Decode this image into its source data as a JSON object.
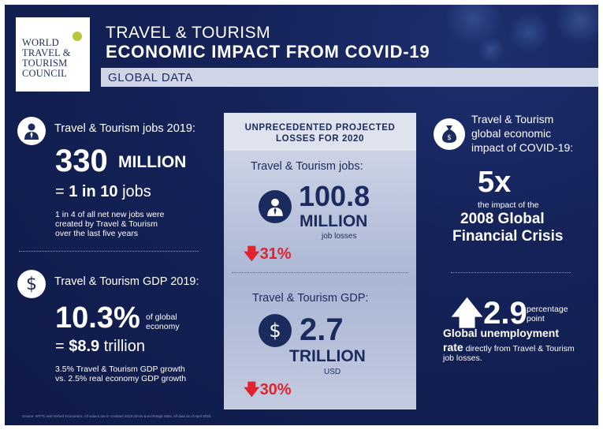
{
  "logo": {
    "lines": [
      "WORLD",
      "TRAVEL &",
      "TOURISM",
      "COUNCIL"
    ]
  },
  "header": {
    "title_line1": "TRAVEL & TOURISM",
    "title_line2": "ECONOMIC IMPACT FROM COVID-19",
    "global_label": "GLOBAL DATA"
  },
  "left": {
    "jobs_label": "Travel & Tourism jobs 2019:",
    "jobs_number": "330",
    "jobs_unit": "MILLION",
    "jobs_ratio_prefix": "= ",
    "jobs_ratio_bold": "1 in 10",
    "jobs_ratio_suffix": " jobs",
    "jobs_note_line1": "1 in 4 of all net new jobs were",
    "jobs_note_line2": "created by Travel & Tourism",
    "jobs_note_line3": "over the last five years",
    "gdp_label": "Travel & Tourism GDP 2019:",
    "gdp_percent": "10.3%",
    "gdp_of_line1": "of global",
    "gdp_of_line2": "economy",
    "gdp_value_prefix": "= ",
    "gdp_value_bold": "$8.9",
    "gdp_value_suffix": " trillion",
    "gdp_note_line1": "3.5% Travel & Tourism GDP growth",
    "gdp_note_line2": "vs. 2.5% real economy GDP growth"
  },
  "center": {
    "heading_line1": "UNPRECEDENTED PROJECTED",
    "heading_line2": "LOSSES FOR 2020",
    "jobs_label": "Travel & Tourism jobs:",
    "jobs_number": "100.8",
    "jobs_unit": "MILLION",
    "jobs_sub": "job losses",
    "jobs_change": "31%",
    "gdp_label": "Travel & Tourism GDP:",
    "gdp_number": "2.7",
    "gdp_unit": "TRILLION",
    "gdp_sub": "USD",
    "gdp_change": "30%"
  },
  "right": {
    "impact_line1": "Travel & Tourism",
    "impact_line2": "global economic",
    "impact_line3": "impact of COVID-19:",
    "multiple": "5x",
    "multiple_sub": "the impact of the",
    "crisis_line1": "2008 Global",
    "crisis_line2": "Financial Crisis",
    "unemp_number": "2.9",
    "unemp_unit_line1": "percentage",
    "unemp_unit_line2": "point",
    "unemp_bold_line1": "Global unemployment",
    "unemp_bold_line2": "rate",
    "unemp_rest_line2": " directly from Travel & Tourism",
    "unemp_rest_line3": "job losses."
  },
  "footer": {
    "source": "Source: WTTC and Oxford Economics. All values are in constant 2019 prices & exchange rates. All data as of April 2020."
  },
  "colors": {
    "navy": "#1c2b5e",
    "red": "#e0242f",
    "panel": "#c3cbe0",
    "logo_accent": "#b7c63a"
  },
  "icons": [
    "person-icon",
    "dollar-icon",
    "money-bag-icon",
    "up-arrow-icon",
    "down-arrow-icon"
  ]
}
